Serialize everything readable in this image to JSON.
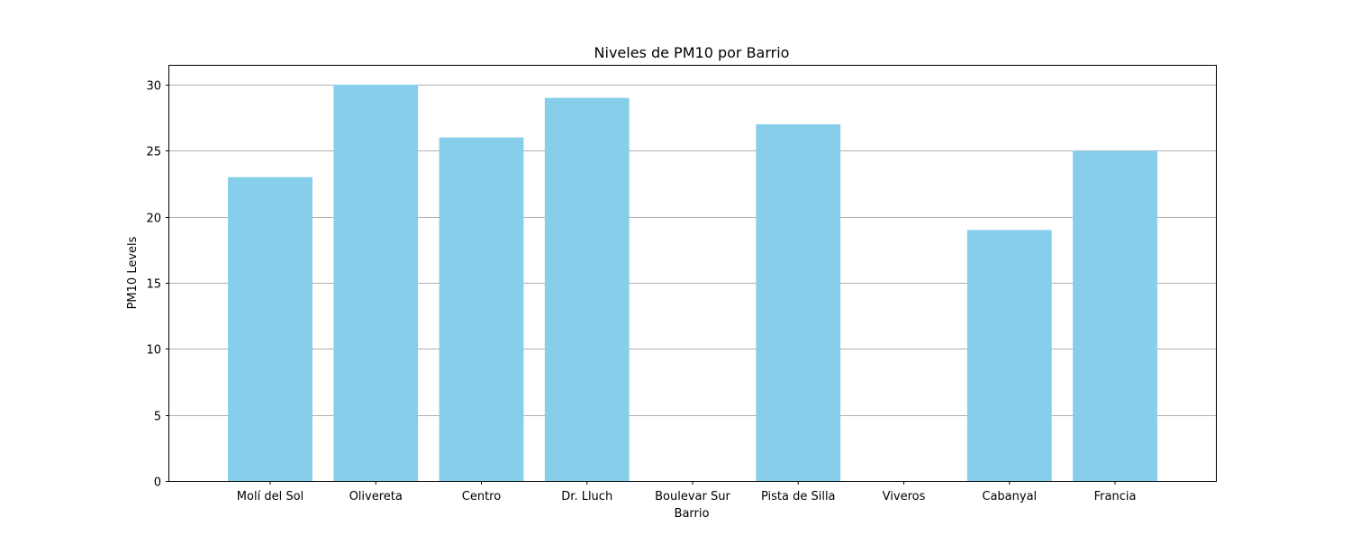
{
  "chart_data": {
    "type": "bar",
    "title": "Niveles de PM10 por Barrio",
    "xlabel": "Barrio",
    "ylabel": "PM10 Levels",
    "categories": [
      "Molí del Sol",
      "Olivereta",
      "Centro",
      "Dr. Lluch",
      "Boulevar Sur",
      "Pista de Silla",
      "Viveros",
      "Cabanyal",
      "Francia"
    ],
    "values": [
      23,
      30,
      26,
      29,
      0,
      27,
      0,
      19,
      25
    ],
    "ylim": [
      0,
      31.5
    ],
    "yticks": [
      0,
      5,
      10,
      15,
      20,
      25,
      30
    ],
    "grid": "y-axis only",
    "legend": "none",
    "bar_color": "#87ceeb"
  }
}
